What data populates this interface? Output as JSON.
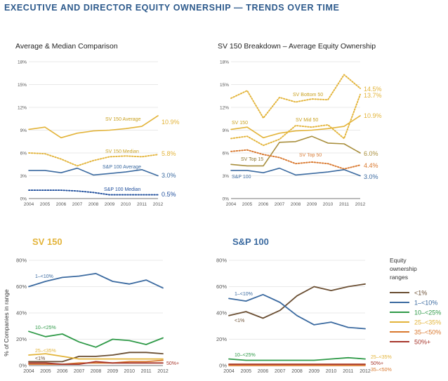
{
  "page": {
    "title": "EXECUTIVE AND DIRECTOR EQUITY OWNERSHIP — TRENDS OVER TIME"
  },
  "colors": {
    "blue": "#3b6aa0",
    "gold": "#e3b43a",
    "brown": "#6a4e32",
    "olive": "#a88e3c",
    "navy": "#1f4e9c",
    "green": "#2f9a48",
    "orange": "#d9782e",
    "red": "#a7362c",
    "grid": "#d4d4d4",
    "axis": "#777777"
  },
  "chart_data": [
    {
      "id": "avg-median",
      "type": "line",
      "title": "Average & Median Comparison",
      "x": [
        "2004",
        "2005",
        "2006",
        "2007",
        "2008",
        "2009",
        "2010",
        "2011",
        "2012"
      ],
      "y_ticks": [
        "0%",
        "3%",
        "6%",
        "9%",
        "12%",
        "15%",
        "18%"
      ],
      "ylim": [
        0,
        18
      ],
      "grid": true,
      "series": [
        {
          "name": "SV 150 Average",
          "color": "#e3b43a",
          "dash": "solid",
          "values": [
            9.1,
            9.4,
            8.0,
            8.6,
            8.9,
            9.0,
            9.2,
            9.5,
            10.9
          ],
          "end_label": "10.9%"
        },
        {
          "name": "SV 150 Median",
          "color": "#e3b43a",
          "dash": "dotted",
          "values": [
            6.0,
            5.9,
            5.2,
            4.3,
            5.0,
            5.5,
            5.6,
            5.5,
            5.8
          ],
          "end_label": "5.8%"
        },
        {
          "name": "S&P 100 Average",
          "color": "#3b6aa0",
          "dash": "solid",
          "values": [
            3.7,
            3.7,
            3.4,
            4.0,
            3.1,
            3.3,
            3.5,
            3.8,
            3.0
          ],
          "end_label": "3.0%"
        },
        {
          "name": "S&P 100 Median",
          "color": "#1f4e9c",
          "dash": "dotted",
          "values": [
            1.1,
            1.1,
            1.1,
            1.0,
            0.8,
            0.5,
            0.5,
            0.5,
            0.5
          ],
          "end_label": "0.5%"
        }
      ]
    },
    {
      "id": "sv150-breakdown",
      "type": "line",
      "title": "SV 150 Breakdown – Average Equity Ownership",
      "x": [
        "2004",
        "2005",
        "2006",
        "2007",
        "2008",
        "2009",
        "2010",
        "2011",
        "2012"
      ],
      "y_ticks": [
        "0%",
        "3%",
        "6%",
        "9%",
        "12%",
        "15%",
        "18%"
      ],
      "ylim": [
        0,
        18
      ],
      "grid": true,
      "series": [
        {
          "name": "SV Bottom 50",
          "color": "#e3b43a",
          "dash": "dotted",
          "values": [
            13.2,
            14.2,
            10.6,
            13.3,
            12.7,
            13.1,
            13.0,
            16.3,
            14.5
          ],
          "end_label": "14.5%"
        },
        {
          "name": "SV Top 15",
          "color": "#a88e3c",
          "dash": "solid",
          "values": [
            4.5,
            4.3,
            4.3,
            7.4,
            7.5,
            8.2,
            7.3,
            7.2,
            6.0
          ],
          "end_label": "6.0%"
        },
        {
          "name": "SV 150",
          "color": "#e3b43a",
          "dash": "solid",
          "values": [
            9.1,
            9.4,
            8.0,
            8.6,
            8.9,
            9.0,
            9.2,
            9.5,
            10.9
          ],
          "end_label": "10.9%"
        },
        {
          "name": "SV Mid 50",
          "color": "#e3b43a",
          "dash": "dotted",
          "values": [
            7.9,
            8.2,
            7.0,
            7.8,
            9.6,
            9.4,
            9.7,
            7.9,
            13.7
          ],
          "end_label": "13.7%"
        },
        {
          "name": "SV Top 50",
          "color": "#d9782e",
          "dash": "dotted",
          "values": [
            6.2,
            6.4,
            5.8,
            5.4,
            4.6,
            4.8,
            4.6,
            3.9,
            4.4
          ],
          "end_label": "4.4%"
        },
        {
          "name": "S&P 100",
          "color": "#3b6aa0",
          "dash": "solid",
          "values": [
            3.7,
            3.7,
            3.4,
            4.0,
            3.1,
            3.3,
            3.5,
            3.8,
            3.0
          ],
          "end_label": "3.0%"
        }
      ]
    },
    {
      "id": "sv150-ranges",
      "type": "line",
      "title": "SV 150",
      "ylabel": "% of Companies in range",
      "x": [
        "2004",
        "2005",
        "2006",
        "2007",
        "2008",
        "2009",
        "2010",
        "2011",
        "2012"
      ],
      "y_ticks": [
        "0%",
        "20%",
        "40%",
        "60%",
        "80%"
      ],
      "ylim": [
        0,
        80
      ],
      "grid": true,
      "series": [
        {
          "name": "1–<10%",
          "color": "#3b6aa0",
          "values": [
            60,
            64,
            67,
            68,
            70,
            64,
            62,
            65,
            59
          ]
        },
        {
          "name": "10–<25%",
          "color": "#2f9a48",
          "values": [
            26,
            22,
            24,
            18,
            14,
            20,
            19,
            16,
            21
          ]
        },
        {
          "name": "<1%",
          "color": "#6a4e32",
          "values": [
            3,
            3,
            3,
            7,
            7,
            8,
            10,
            10,
            9
          ]
        },
        {
          "name": "25–<35%",
          "color": "#e3b43a",
          "values": [
            8,
            9,
            7,
            5,
            5,
            5,
            5,
            5,
            5
          ]
        },
        {
          "name": "35–<50%",
          "color": "#d9782e",
          "values": [
            1,
            1,
            1,
            2,
            2,
            2,
            3,
            3,
            4
          ]
        },
        {
          "name": "50%+",
          "color": "#a7362c",
          "values": [
            2,
            2,
            1,
            1,
            3,
            2,
            2,
            2,
            2
          ]
        }
      ]
    },
    {
      "id": "sp100-ranges",
      "type": "line",
      "title": "S&P 100",
      "x": [
        "2004",
        "2005",
        "2006",
        "2007",
        "2008",
        "2009",
        "2010",
        "2011",
        "2012"
      ],
      "y_ticks": [
        "0%",
        "20%",
        "40%",
        "60%",
        "80%"
      ],
      "ylim": [
        0,
        80
      ],
      "grid": true,
      "series": [
        {
          "name": "<1%",
          "color": "#6a4e32",
          "values": [
            38,
            41,
            36,
            42,
            53,
            60,
            57,
            60,
            62
          ]
        },
        {
          "name": "1–<10%",
          "color": "#3b6aa0",
          "values": [
            51,
            49,
            54,
            48,
            38,
            31,
            33,
            29,
            28
          ]
        },
        {
          "name": "10–<25%",
          "color": "#2f9a48",
          "values": [
            5,
            4,
            4,
            4,
            4,
            4,
            5,
            6,
            5
          ]
        },
        {
          "name": "25–<35%",
          "color": "#e3b43a",
          "values": [
            1,
            1,
            1,
            1,
            1,
            1,
            1,
            1,
            1
          ]
        },
        {
          "name": "35–<50%",
          "color": "#d9782e",
          "values": [
            0,
            0,
            0,
            0,
            0,
            0,
            0,
            0,
            0
          ]
        },
        {
          "name": "50%+",
          "color": "#a7362c",
          "values": [
            1,
            1,
            1,
            1,
            1,
            1,
            1,
            1,
            1
          ]
        }
      ]
    }
  ],
  "labels": {
    "c1": {
      "sv150_avg": "SV 150 Average",
      "sv150_med": "SV 150 Median",
      "sp_avg": "S&P 100 Average",
      "sp_med": "S&P 100 Median"
    },
    "c2": {
      "bottom50": "SV Bottom 50",
      "sv150": "SV 150",
      "mid50": "SV Mid 50",
      "top15": "SV Top 15",
      "top50": "SV Top 50",
      "sp100": "S&P 100"
    },
    "c3": {
      "r1_10": "1–<10%",
      "r10_25": "10–<25%",
      "r25_35": "25–<35%",
      "r_lt1": "<1%",
      "r50": "50%+"
    },
    "c4": {
      "r1_10": "1–<10%",
      "r_lt1": "<1%",
      "r10_25": "10–<25%",
      "r25_35": "25–<35%",
      "r50": "50%+",
      "r35_50": "35–<50%"
    }
  },
  "legend": {
    "title": [
      "Equity",
      "ownership",
      "ranges"
    ],
    "items": [
      {
        "label": "<1%",
        "color": "#6a4e32"
      },
      {
        "label": "1–<10%",
        "color": "#3b6aa0"
      },
      {
        "label": "10–<25%",
        "color": "#2f9a48"
      },
      {
        "label": "25–<35%",
        "color": "#e3b43a"
      },
      {
        "label": "35–<50%",
        "color": "#d9782e"
      },
      {
        "label": "50%+",
        "color": "#a7362c"
      }
    ]
  }
}
